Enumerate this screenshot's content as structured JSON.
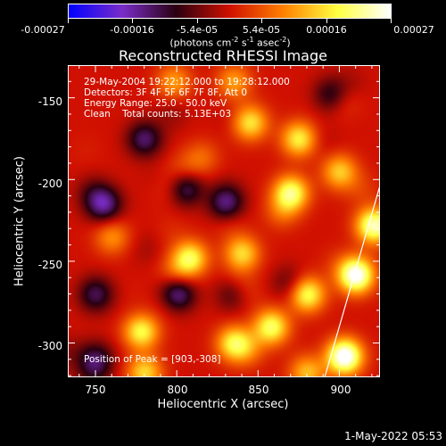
{
  "colorbar": {
    "ticks": [
      "-0.00027",
      "-0.00016",
      "-5.4e-05",
      "5.4e-05",
      "0.00016",
      "0.00027"
    ],
    "unit_parts": [
      "(photons cm",
      "-2",
      " s",
      "-1",
      " asec",
      "-2",
      ")"
    ]
  },
  "chart_data": {
    "type": "heatmap",
    "title": "Reconstructed RHESSI Image",
    "xlabel": "Heliocentric X (arcsec)",
    "ylabel": "Heliocentric Y (arcsec)",
    "xlim": [
      733,
      925
    ],
    "ylim": [
      -321,
      -130
    ],
    "xticks": [
      "750",
      "800",
      "850",
      "900"
    ],
    "yticks": [
      "-150",
      "-200",
      "-250",
      "-300"
    ],
    "colorbar_range": [
      -0.00027,
      0.00027
    ],
    "colormap": [
      "#0000ff",
      "#7a2dc8",
      "#2a0010",
      "#d01000",
      "#ff8000",
      "#ffff40",
      "#ffffff"
    ],
    "annotations": [
      "29-May-2004 19:22:12.000 to 19:28:12.000",
      "Detectors: 3F 4F 5F 6F 7F 8F, Att 0",
      "Energy Range: 25.0 - 50.0 keV",
      "Clean    Total counts: 5.13E+03"
    ],
    "peak_label": "Position of Peak = [903,-308]",
    "sources": [
      {
        "x": 903,
        "y": -308,
        "value": 0.00027
      },
      {
        "x": 910,
        "y": -258,
        "value": 0.00024
      },
      {
        "x": 921,
        "y": -228,
        "value": 0.00022
      },
      {
        "x": 870,
        "y": -208,
        "value": 0.00019
      },
      {
        "x": 875,
        "y": -175,
        "value": 0.00016
      },
      {
        "x": 845,
        "y": -165,
        "value": 0.00015
      },
      {
        "x": 880,
        "y": -270,
        "value": 0.00018
      },
      {
        "x": 858,
        "y": -290,
        "value": 0.00018
      },
      {
        "x": 808,
        "y": -248,
        "value": 0.00017
      },
      {
        "x": 778,
        "y": -293,
        "value": 0.00017
      },
      {
        "x": 835,
        "y": -300,
        "value": 0.00016
      },
      {
        "x": 840,
        "y": -245,
        "value": 0.00014
      },
      {
        "x": 780,
        "y": -318,
        "value": 0.00014
      },
      {
        "x": 880,
        "y": -318,
        "value": 0.00012
      },
      {
        "x": 900,
        "y": -195,
        "value": 0.00013
      },
      {
        "x": 798,
        "y": -140,
        "value": 0.0001
      },
      {
        "x": 835,
        "y": -140,
        "value": 0.0001
      },
      {
        "x": 760,
        "y": -235,
        "value": 9e-05
      },
      {
        "x": 780,
        "y": -175,
        "value": -0.00012
      },
      {
        "x": 755,
        "y": -215,
        "value": -0.00014
      },
      {
        "x": 805,
        "y": -205,
        "value": -0.00013
      },
      {
        "x": 800,
        "y": -270,
        "value": -0.00016
      },
      {
        "x": 750,
        "y": -270,
        "value": -0.00011
      },
      {
        "x": 830,
        "y": -215,
        "value": -0.0001
      },
      {
        "x": 835,
        "y": -270,
        "value": -9e-05
      },
      {
        "x": 750,
        "y": -310,
        "value": -0.00011
      },
      {
        "x": 895,
        "y": -148,
        "value": -0.0001
      }
    ]
  },
  "footer": {
    "timestamp": "1-May-2022 05:53"
  }
}
